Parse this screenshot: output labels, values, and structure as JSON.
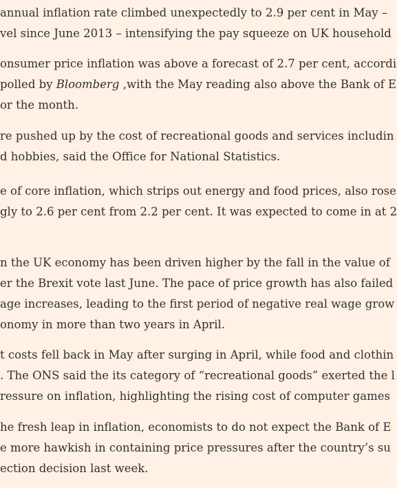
{
  "article": {
    "paragraphs": [
      {
        "lines": [
          "annual inflation rate climbed unexpectedly to 2.9 per cent in May –",
          "vel since June 2013 – intensifying the pay squeeze on UK household"
        ]
      },
      {
        "lines": [
          "onsumer price inflation was above a forecast of 2.7 per cent, accordi"
        ],
        "line2_prefix": "polled by ",
        "line2_source": "Bloomberg",
        "line2_suffix": " ,with the May reading also above the Bank of E",
        "line3": "or the month."
      },
      {
        "lines": [
          "re pushed up by the cost of recreational goods and services includin",
          "d hobbies, said the Office for National Statistics."
        ]
      },
      {
        "lines": [
          "e of core inflation, which strips out energy and food prices, also rose",
          "gly to 2.6 per cent from 2.2 per cent. It was expected to come in at 2"
        ]
      },
      {
        "lines": [
          "n the UK economy has been driven higher by the fall in the value of",
          "er the Brexit vote last June. The pace of price growth has also failed",
          "age increases, leading to the first period of negative real wage grow",
          "onomy in more than two years in April."
        ]
      },
      {
        "lines": [
          "t costs fell back in May after surging in April, while food and clothin",
          ". The ONS said the its category of “recreational goods” exerted the l",
          "ressure on inflation, highlighting the rising cost of computer games"
        ]
      },
      {
        "lines": [
          "he fresh leap in inflation, economists to do not expect the Bank of E",
          "e more hawkish in containing price pressures after the country’s su",
          "ection decision last week."
        ]
      }
    ]
  }
}
